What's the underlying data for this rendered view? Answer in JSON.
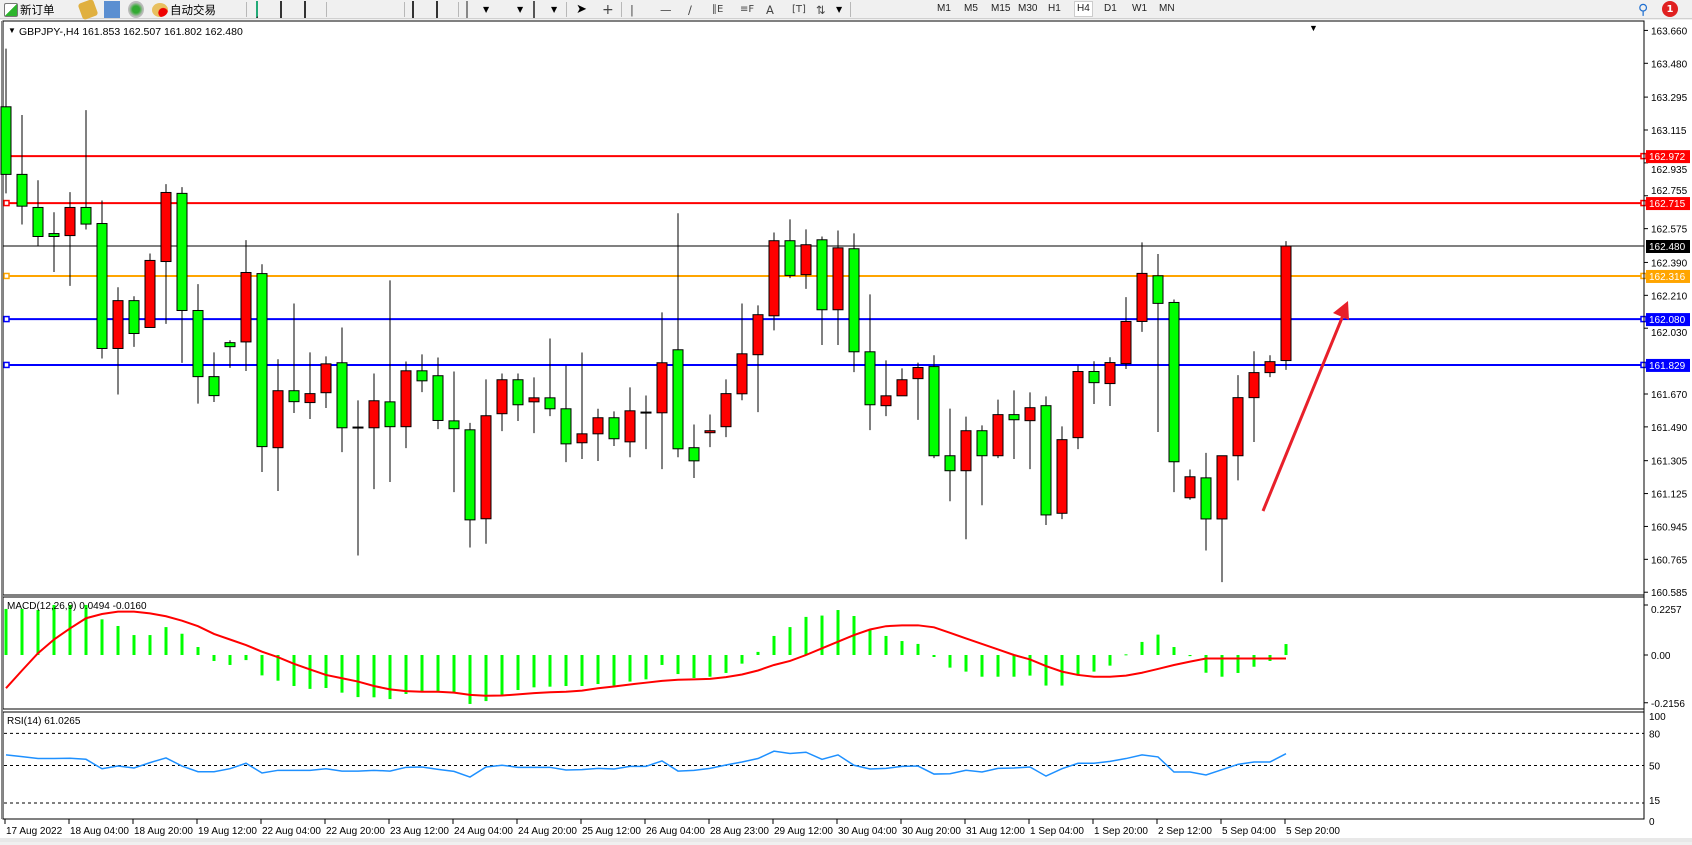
{
  "toolbar": {
    "new_order_label": "新订单",
    "auto_trading_label": "自动交易",
    "periods": [
      "M1",
      "M5",
      "M15",
      "M30",
      "H1",
      "H4",
      "D1",
      "W1",
      "MN"
    ],
    "active_period": "H4",
    "notification_count": "1"
  },
  "chart_title": "GBPJPY-,H4  161.853 162.507 161.802 162.480",
  "macd_label": "MACD(12,26,9) 0.0494 -0.0160",
  "rsi_label": "RSI(14) 61.0265",
  "colors": {
    "bull": "#ff0000",
    "bear": "#00ff00",
    "macd_hist": "#00ff00",
    "macd_signal": "#ff0000",
    "rsi": "#1e90ff",
    "arrow": "#e8202a"
  },
  "chart_data": [
    {
      "type": "candlestick",
      "symbol": "GBPJPY-",
      "timeframe": "H4",
      "ylim": [
        160.585,
        163.66
      ],
      "y_ticks": [
        "163.660",
        "163.480",
        "163.295",
        "163.115",
        "162.935",
        "162.755",
        "162.575",
        "162.390",
        "162.210",
        "162.030",
        "161.670",
        "161.490",
        "161.305",
        "161.125",
        "160.945",
        "160.765",
        "160.585"
      ],
      "x_labels": [
        "17 Aug 2022",
        "18 Aug 04:00",
        "18 Aug 20:00",
        "19 Aug 12:00",
        "22 Aug 04:00",
        "22 Aug 20:00",
        "23 Aug 12:00",
        "24 Aug 04:00",
        "24 Aug 20:00",
        "25 Aug 12:00",
        "26 Aug 04:00",
        "28 Aug 23:00",
        "29 Aug 12:00",
        "30 Aug 04:00",
        "30 Aug 20:00",
        "31 Aug 12:00",
        "1 Sep 04:00",
        "1 Sep 20:00",
        "2 Sep 12:00",
        "5 Sep 04:00",
        "5 Sep 20:00"
      ],
      "ohlc": [
        [
          163.242,
          163.56,
          162.768,
          162.872
        ],
        [
          162.872,
          163.197,
          162.598,
          162.698
        ],
        [
          162.691,
          162.84,
          162.479,
          162.532
        ],
        [
          162.548,
          162.665,
          162.338,
          162.532
        ],
        [
          162.537,
          162.775,
          162.262,
          162.691
        ],
        [
          162.691,
          163.224,
          162.57,
          162.6
        ],
        [
          162.603,
          162.729,
          161.864,
          161.919
        ],
        [
          161.919,
          162.254,
          161.667,
          162.181
        ],
        [
          162.181,
          162.205,
          161.928,
          162.001
        ],
        [
          162.034,
          162.439,
          162.034,
          162.401
        ],
        [
          162.395,
          162.819,
          162.054,
          162.773
        ],
        [
          162.768,
          162.802,
          161.84,
          162.127
        ],
        [
          162.127,
          162.271,
          161.617,
          161.765
        ],
        [
          161.765,
          161.898,
          161.626,
          161.661
        ],
        [
          161.951,
          161.964,
          161.813,
          161.929
        ],
        [
          161.955,
          162.512,
          161.796,
          162.335
        ],
        [
          162.329,
          162.38,
          161.243,
          161.382
        ],
        [
          161.376,
          161.86,
          161.139,
          161.688
        ],
        [
          161.688,
          162.165,
          161.566,
          161.628
        ],
        [
          161.623,
          161.898,
          161.533,
          161.672
        ],
        [
          161.677,
          161.876,
          161.593,
          161.835
        ],
        [
          161.841,
          162.034,
          161.352,
          161.485
        ],
        [
          161.489,
          161.635,
          160.786,
          161.489
        ],
        [
          161.485,
          161.782,
          161.149,
          161.633
        ],
        [
          161.627,
          162.292,
          161.188,
          161.491
        ],
        [
          161.491,
          161.848,
          161.374,
          161.797
        ],
        [
          161.797,
          161.887,
          161.68,
          161.742
        ],
        [
          161.77,
          161.87,
          161.478,
          161.525
        ],
        [
          161.523,
          161.793,
          161.133,
          161.48
        ],
        [
          161.474,
          161.512,
          160.83,
          160.981
        ],
        [
          160.987,
          161.75,
          160.85,
          161.551
        ],
        [
          161.562,
          161.782,
          161.467,
          161.748
        ],
        [
          161.748,
          161.782,
          161.522,
          161.611
        ],
        [
          161.627,
          161.761,
          161.456,
          161.649
        ],
        [
          161.649,
          161.974,
          161.549,
          161.589
        ],
        [
          161.589,
          161.825,
          161.297,
          161.397
        ],
        [
          161.403,
          161.897,
          161.314,
          161.452
        ],
        [
          161.452,
          161.589,
          161.303,
          161.54
        ],
        [
          161.54,
          161.575,
          161.385,
          161.425
        ],
        [
          161.408,
          161.706,
          161.324,
          161.578
        ],
        [
          161.571,
          161.662,
          161.368,
          161.571
        ],
        [
          161.567,
          162.117,
          161.259,
          161.841
        ],
        [
          161.912,
          162.659,
          161.324,
          161.37
        ],
        [
          161.376,
          161.503,
          161.21,
          161.304
        ],
        [
          161.458,
          161.558,
          161.379,
          161.469
        ],
        [
          161.491,
          161.75,
          161.434,
          161.672
        ],
        [
          161.671,
          162.165,
          161.636,
          161.89
        ],
        [
          161.885,
          162.155,
          161.571,
          162.104
        ],
        [
          162.098,
          162.554,
          162.018,
          162.509
        ],
        [
          162.509,
          162.626,
          162.304,
          162.319
        ],
        [
          162.323,
          162.571,
          162.245,
          162.487
        ],
        [
          162.514,
          162.532,
          161.938,
          162.131
        ],
        [
          162.131,
          162.565,
          161.938,
          162.47
        ],
        [
          162.465,
          162.549,
          161.79,
          161.901
        ],
        [
          161.901,
          162.215,
          161.472,
          161.611
        ],
        [
          161.606,
          161.854,
          161.549,
          161.66
        ],
        [
          161.66,
          161.81,
          161.66,
          161.748
        ],
        [
          161.754,
          161.842,
          161.528,
          161.815
        ],
        [
          161.82,
          161.882,
          161.319,
          161.332
        ],
        [
          161.332,
          161.59,
          161.083,
          161.25
        ],
        [
          161.25,
          161.546,
          160.875,
          161.469
        ],
        [
          161.469,
          161.498,
          161.061,
          161.332
        ],
        [
          161.332,
          161.639,
          161.319,
          161.557
        ],
        [
          161.557,
          161.69,
          161.314,
          161.529
        ],
        [
          161.524,
          161.679,
          161.259,
          161.595
        ],
        [
          161.606,
          161.657,
          160.953,
          161.008
        ],
        [
          161.017,
          161.493,
          160.985,
          161.42
        ],
        [
          161.431,
          161.826,
          161.368,
          161.793
        ],
        [
          161.793,
          161.849,
          161.615,
          161.732
        ],
        [
          161.727,
          161.871,
          161.604,
          161.842
        ],
        [
          161.836,
          162.2,
          161.807,
          162.067
        ],
        [
          162.067,
          162.5,
          162.01,
          162.33
        ],
        [
          162.317,
          162.436,
          161.462,
          162.166
        ],
        [
          162.171,
          162.187,
          161.133,
          161.299
        ],
        [
          161.102,
          161.257,
          161.091,
          161.217
        ],
        [
          161.211,
          161.348,
          160.813,
          160.986
        ],
        [
          160.986,
          161.332,
          160.64,
          161.332
        ],
        [
          161.332,
          161.773,
          161.197,
          161.65
        ],
        [
          161.65,
          161.904,
          161.407,
          161.787
        ],
        [
          161.787,
          161.882,
          161.762,
          161.847
        ],
        [
          161.853,
          162.507,
          161.802,
          162.48
        ]
      ],
      "horizontal_lines": [
        {
          "price": "162.972",
          "color": "#ff0000"
        },
        {
          "price": "162.715",
          "color": "#ff0000"
        },
        {
          "price": "162.316",
          "color": "#ffa500"
        },
        {
          "price": "162.080",
          "color": "#0000ff"
        },
        {
          "price": "161.829",
          "color": "#0000ff"
        }
      ],
      "current_price": {
        "price": "162.480",
        "color": "#000000"
      },
      "annotation": {
        "type": "arrow",
        "direction": "up",
        "color": "#e8202a"
      }
    },
    {
      "type": "bar",
      "indicator": "MACD(12,26,9)",
      "ylim": [
        -0.2156,
        0.2257
      ],
      "y_ticks": [
        "0.2257",
        "0.00",
        "-0.2156"
      ],
      "histogram": [
        0.208,
        0.208,
        0.203,
        0.226,
        0.226,
        0.226,
        0.161,
        0.131,
        0.09,
        0.09,
        0.126,
        0.096,
        0.036,
        -0.027,
        -0.045,
        -0.023,
        -0.092,
        -0.116,
        -0.14,
        -0.153,
        -0.149,
        -0.17,
        -0.19,
        -0.191,
        -0.199,
        -0.176,
        -0.166,
        -0.166,
        -0.172,
        -0.221,
        -0.208,
        -0.181,
        -0.158,
        -0.146,
        -0.143,
        -0.14,
        -0.14,
        -0.131,
        -0.138,
        -0.12,
        -0.11,
        -0.045,
        -0.086,
        -0.104,
        -0.098,
        -0.081,
        -0.039,
        0.014,
        0.086,
        0.126,
        0.172,
        0.178,
        0.203,
        0.176,
        0.113,
        0.086,
        0.063,
        0.05,
        -0.009,
        -0.057,
        -0.075,
        -0.098,
        -0.098,
        -0.098,
        -0.093,
        -0.138,
        -0.138,
        -0.093,
        -0.075,
        -0.048,
        0.003,
        0.059,
        0.092,
        0.036,
        -0.005,
        -0.08,
        -0.098,
        -0.081,
        -0.053,
        -0.027,
        0.0494
      ],
      "signal": [
        -0.15,
        -0.07,
        0.008,
        0.07,
        0.12,
        0.166,
        0.185,
        0.196,
        0.196,
        0.188,
        0.175,
        0.155,
        0.13,
        0.095,
        0.07,
        0.045,
        0.015,
        -0.01,
        -0.04,
        -0.065,
        -0.09,
        -0.105,
        -0.12,
        -0.14,
        -0.155,
        -0.163,
        -0.166,
        -0.166,
        -0.17,
        -0.18,
        -0.184,
        -0.183,
        -0.178,
        -0.172,
        -0.168,
        -0.166,
        -0.161,
        -0.15,
        -0.142,
        -0.133,
        -0.125,
        -0.117,
        -0.112,
        -0.11,
        -0.108,
        -0.1,
        -0.088,
        -0.07,
        -0.045,
        -0.027,
        0.0,
        0.03,
        0.06,
        0.09,
        0.115,
        0.13,
        0.134,
        0.134,
        0.125,
        0.1,
        0.075,
        0.05,
        0.025,
        0.0,
        -0.02,
        -0.05,
        -0.075,
        -0.09,
        -0.098,
        -0.098,
        -0.093,
        -0.08,
        -0.063,
        -0.045,
        -0.03,
        -0.016,
        -0.016,
        -0.016,
        -0.016,
        -0.016,
        -0.016
      ]
    },
    {
      "type": "line",
      "indicator": "RSI(14)",
      "ylim": [
        0,
        100
      ],
      "y_ticks": [
        "100",
        "80",
        "50",
        "15",
        "0"
      ],
      "levels": [
        80,
        50,
        15
      ],
      "values": [
        59.9,
        58.3,
        56.5,
        56.5,
        56.8,
        55.8,
        47.0,
        49.5,
        47.7,
        52.7,
        57.1,
        49.5,
        44.2,
        44.2,
        47.0,
        52.1,
        43.0,
        45.5,
        45.5,
        45.5,
        47.0,
        44.8,
        44.8,
        45.5,
        44.8,
        48.3,
        48.6,
        46.4,
        44.5,
        39.2,
        48.6,
        50.2,
        48.3,
        48.3,
        48.3,
        45.8,
        46.1,
        47.3,
        46.7,
        49.2,
        49.2,
        54.3,
        44.8,
        45.5,
        47.3,
        50.5,
        53.3,
        56.5,
        63.4,
        61.2,
        62.4,
        55.8,
        59.9,
        50.2,
        46.7,
        47.3,
        49.2,
        49.5,
        42.0,
        42.3,
        45.5,
        43.9,
        47.3,
        47.7,
        48.6,
        40.1,
        47.0,
        52.1,
        52.1,
        53.9,
        56.5,
        59.9,
        58.0,
        43.9,
        43.9,
        41.1,
        46.1,
        51.1,
        53.3,
        53.3,
        61.0265
      ]
    }
  ]
}
